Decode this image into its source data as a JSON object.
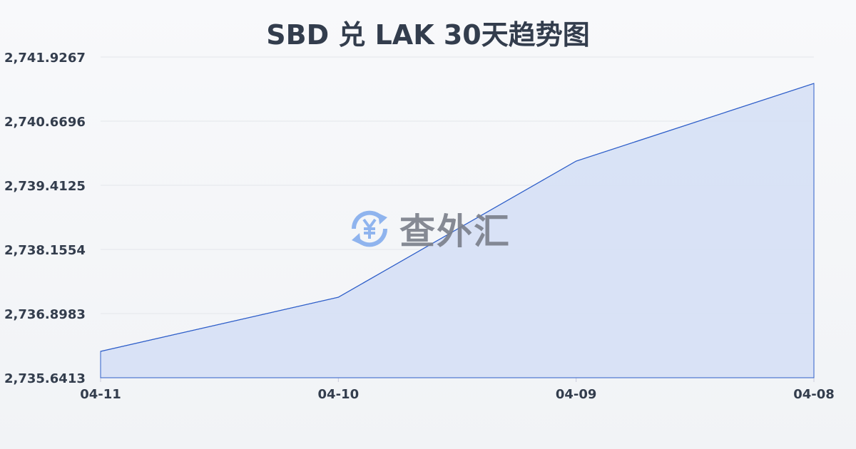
{
  "chart_data": {
    "type": "area",
    "title": "SBD 兑 LAK 30天趋势图",
    "categories": [
      "04-11",
      "04-10",
      "04-09",
      "04-08"
    ],
    "values": [
      2736.158,
      2737.219,
      2739.887,
      2741.409
    ],
    "ylim": [
      2735.6413,
      2741.9267
    ],
    "yticks": [
      "2,735.6413",
      "2,736.8983",
      "2,738.1554",
      "2,739.4125",
      "2,740.6696",
      "2,741.9267"
    ],
    "grid": true,
    "colors": {
      "line": "#2f5fc9",
      "fill": "#d6e0f5",
      "grid": "#e3e6ea",
      "text": "#333d4d"
    }
  },
  "watermark": {
    "text": "查外汇",
    "icon": "yen-exchange-icon"
  }
}
